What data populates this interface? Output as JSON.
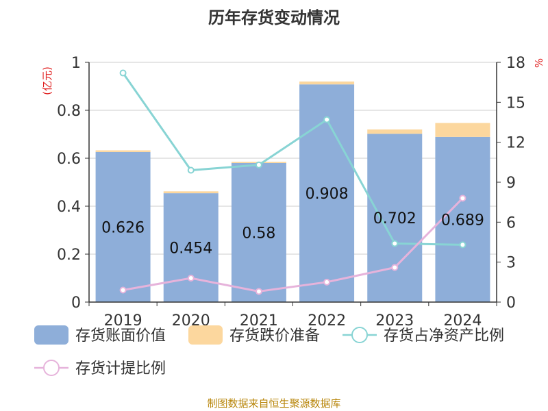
{
  "chart_data": {
    "type": "bar",
    "title": "历年存货变动情况",
    "left_unit": "(亿元)",
    "right_unit": "%",
    "categories": [
      "2019",
      "2020",
      "2021",
      "2022",
      "2023",
      "2024"
    ],
    "stacked": true,
    "bar_series": [
      {
        "name": "存货账面价值",
        "color": "#8eaed9",
        "values": [
          0.626,
          0.454,
          0.58,
          0.908,
          0.702,
          0.689
        ],
        "labels": [
          "0.626",
          "0.454",
          "0.58",
          "0.908",
          "0.702",
          "0.689"
        ]
      },
      {
        "name": "存货跌价准备",
        "color": "#fcd79e",
        "values": [
          0.007,
          0.008,
          0.005,
          0.012,
          0.018,
          0.058
        ]
      }
    ],
    "line_series": [
      {
        "name": "存货占净资产比例",
        "color": "#88d4d4",
        "axis": "right",
        "values": [
          17.2,
          9.9,
          10.3,
          13.7,
          4.4,
          4.3
        ]
      },
      {
        "name": "存货计提比例",
        "color": "#e6b3db",
        "axis": "right",
        "values": [
          0.9,
          1.8,
          0.8,
          1.5,
          2.6,
          7.8
        ]
      }
    ],
    "y_left": {
      "min": 0,
      "max": 1,
      "ticks": [
        "0",
        "0.2",
        "0.4",
        "0.6",
        "0.8",
        "1"
      ]
    },
    "y_right": {
      "min": 0,
      "max": 18,
      "ticks": [
        "0",
        "3",
        "6",
        "9",
        "12",
        "15",
        "18"
      ]
    },
    "grid": true,
    "legend_position": "bottom"
  },
  "footer": {
    "source": "制图数据来自恒生聚源数据库"
  }
}
